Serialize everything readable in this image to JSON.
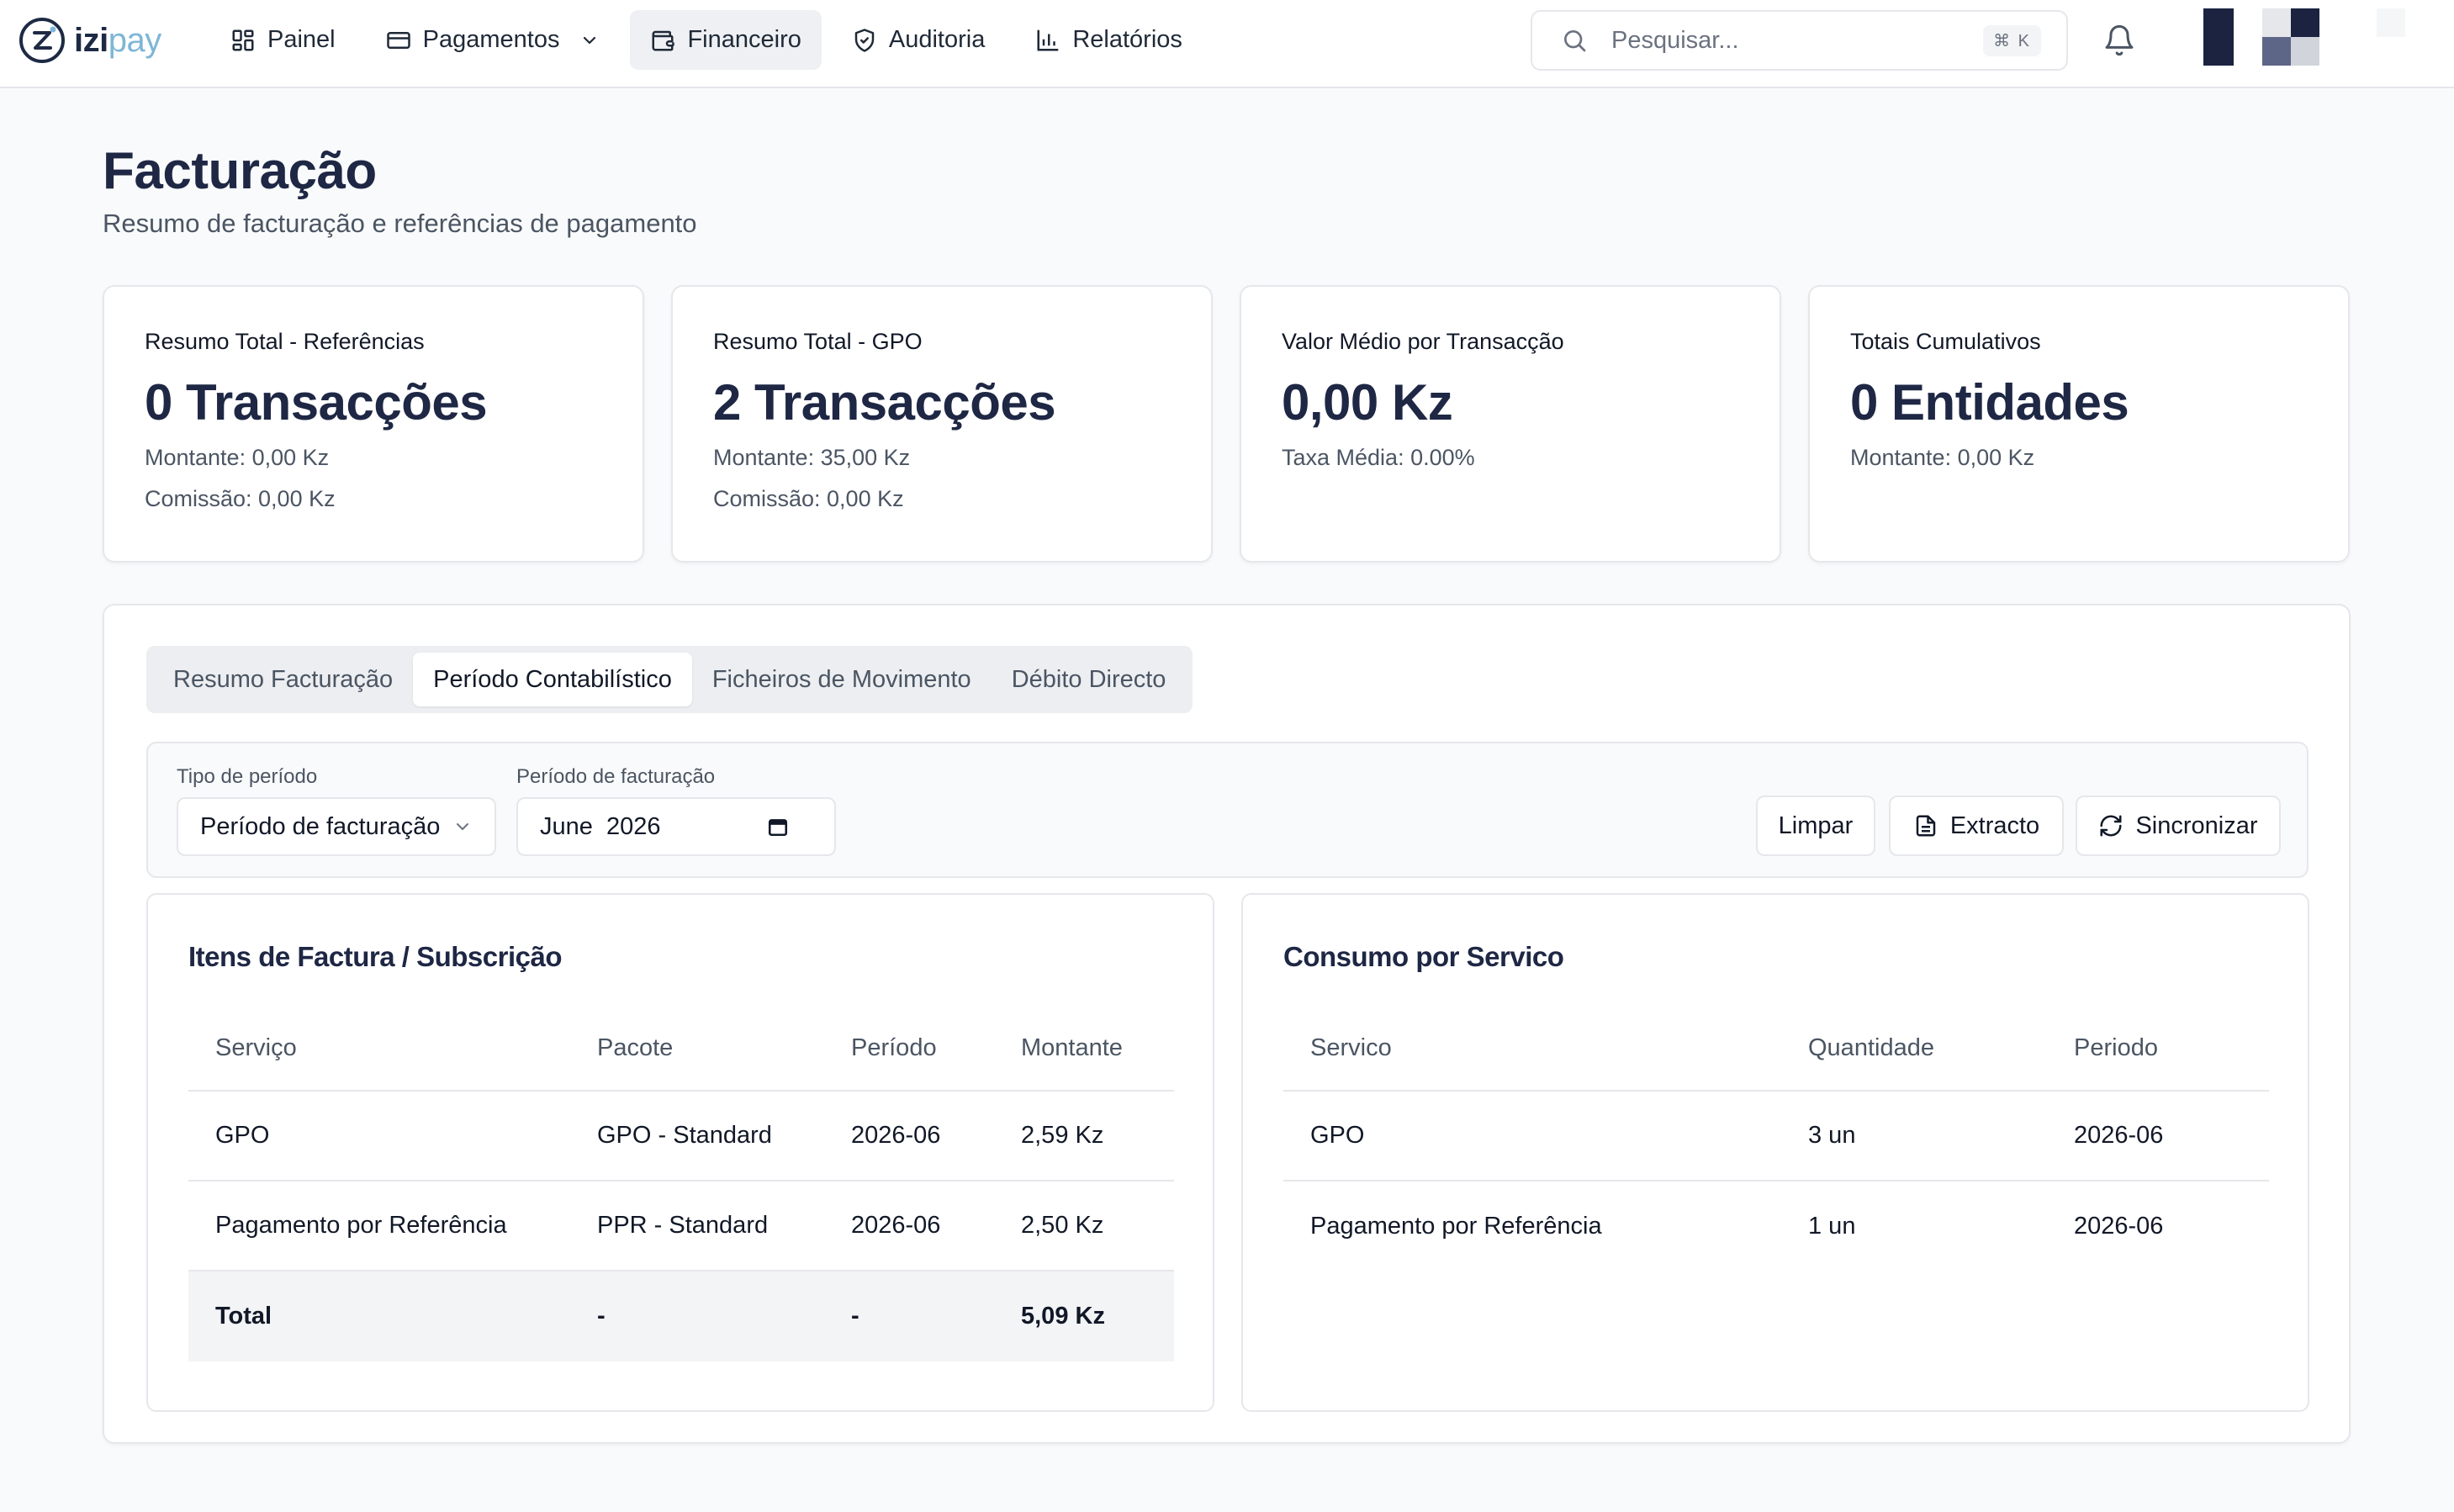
{
  "brand": {
    "izi": "izi",
    "pay": "pay"
  },
  "nav": {
    "items": [
      {
        "label": "Painel",
        "icon": "dashboard-icon"
      },
      {
        "label": "Pagamentos",
        "icon": "credit-card-icon"
      },
      {
        "label": "Financeiro",
        "icon": "wallet-icon"
      },
      {
        "label": "Auditoria",
        "icon": "shield-icon"
      },
      {
        "label": "Relatórios",
        "icon": "bar-chart-icon"
      }
    ],
    "active": "Financeiro"
  },
  "search": {
    "placeholder": "Pesquisar...",
    "shortcut": "⌘ K"
  },
  "page": {
    "title": "Facturação",
    "subtitle": "Resumo de facturação e referências de pagamento"
  },
  "stats": [
    {
      "label": "Resumo Total - Referências",
      "value": "0 Transacções",
      "line1": "Montante: 0,00 Kz",
      "line2": "Comissão: 0,00 Kz"
    },
    {
      "label": "Resumo Total - GPO",
      "value": "2 Transacções",
      "line1": "Montante: 35,00 Kz",
      "line2": "Comissão: 0,00 Kz"
    },
    {
      "label": "Valor Médio por Transacção",
      "value": "0,00 Kz",
      "line1": "Taxa Média: 0.00%"
    },
    {
      "label": "Totais Cumulativos",
      "value": "0 Entidades",
      "line1": "Montante: 0,00 Kz"
    }
  ],
  "tabs": [
    {
      "label": "Resumo Facturação"
    },
    {
      "label": "Período Contabilístico"
    },
    {
      "label": "Ficheiros de Movimento"
    },
    {
      "label": "Débito Directo"
    }
  ],
  "active_tab": "Período Contabilístico",
  "filters": {
    "period_type": {
      "label": "Tipo de período",
      "value": "Período de facturação"
    },
    "billing_period": {
      "label": "Período de facturação",
      "value": "June  2026"
    }
  },
  "actions": {
    "clear": "Limpar",
    "statement": "Extracto",
    "sync": "Sincronizar"
  },
  "invoice_items": {
    "title": "Itens de Factura / Subscrição",
    "columns": [
      "Serviço",
      "Pacote",
      "Período",
      "Montante"
    ],
    "rows": [
      [
        "GPO",
        "GPO - Standard",
        "2026-06",
        "2,59 Kz"
      ],
      [
        "Pagamento por Referência",
        "PPR - Standard",
        "2026-06",
        "2,50 Kz"
      ]
    ],
    "total": [
      "Total",
      "-",
      "-",
      "5,09 Kz"
    ]
  },
  "consumption": {
    "title": "Consumo por Servico",
    "columns": [
      "Servico",
      "Quantidade",
      "Periodo"
    ],
    "rows": [
      [
        "GPO",
        "3 un",
        "2026-06"
      ],
      [
        "Pagamento por Referência",
        "1 un",
        "2026-06"
      ]
    ]
  },
  "colors": {
    "primary_text": "#1e2744",
    "accent": "#7eb6d6",
    "border": "#e5e7eb"
  }
}
